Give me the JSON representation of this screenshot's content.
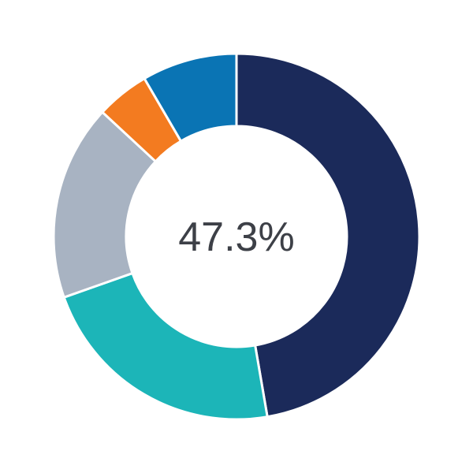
{
  "chart_data": {
    "type": "pie",
    "variant": "donut",
    "center_label": "47.3%",
    "slices": [
      {
        "value": 47.3,
        "color": "#1b2a5a"
      },
      {
        "value": 22.3,
        "color": "#1cb5b8"
      },
      {
        "value": 17.3,
        "color": "#a8b3c2"
      },
      {
        "value": 4.7,
        "color": "#f37b20"
      },
      {
        "value": 8.4,
        "color": "#0a74b4"
      }
    ],
    "start": "top",
    "direction": "clockwise",
    "legend": "none"
  }
}
